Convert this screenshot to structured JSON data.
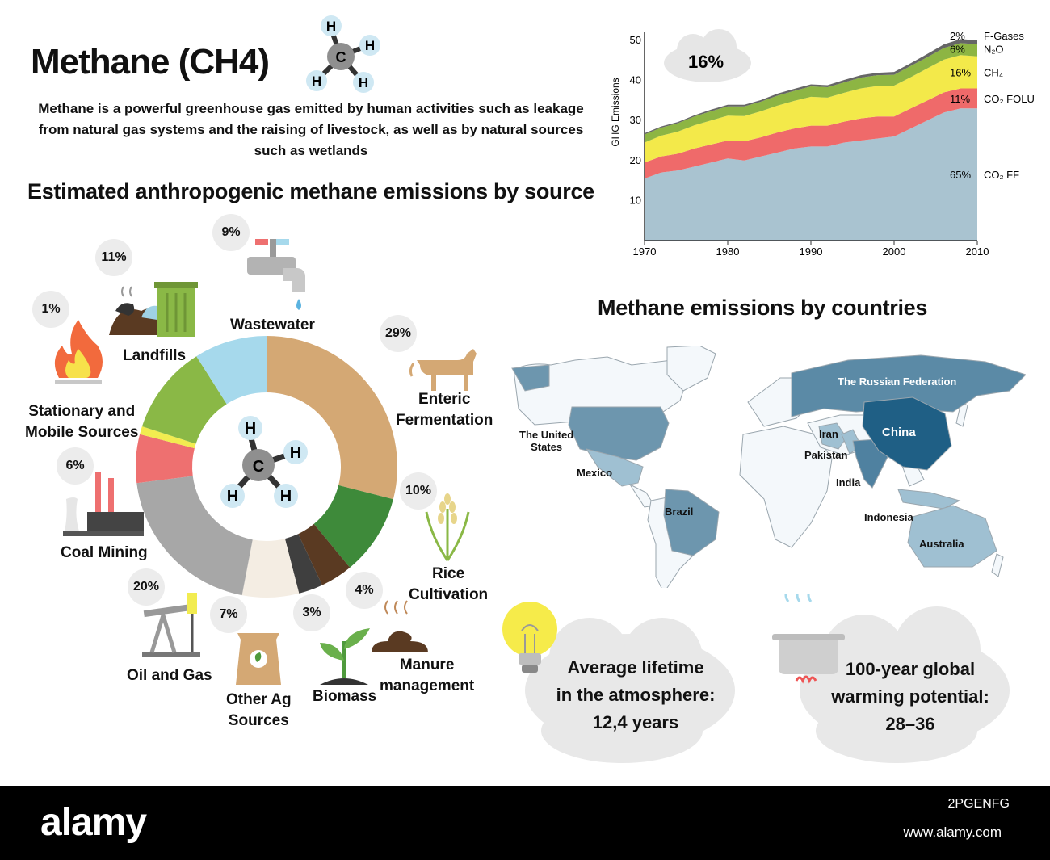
{
  "header": {
    "title": "Methane (CH4)",
    "intro": "Methane is a powerful greenhouse gas emitted by human activities such as leakage from natural gas systems and the raising of livestock, as well as by natural sources such as wetlands"
  },
  "donut_section": {
    "title": "Estimated anthropogenic methane emissions by source"
  },
  "molecule": {
    "center": "C",
    "atom": "H"
  },
  "chart_data": [
    {
      "type": "pie",
      "title": "Estimated anthropogenic methane emissions by source",
      "categories": [
        "Enteric Fermentation",
        "Rice Cultivation",
        "Manure management",
        "Biomass",
        "Other Ag Sources",
        "Oil and Gas",
        "Coal Mining",
        "Stationary and Mobile Sources",
        "Landfills",
        "Wastewater"
      ],
      "values": [
        29,
        10,
        4,
        3,
        7,
        20,
        6,
        1,
        11,
        9
      ],
      "labels": [
        "29%",
        "10%",
        "4%",
        "3%",
        "7%",
        "20%",
        "6%",
        "1%",
        "11%",
        "9%"
      ],
      "colors": [
        "#d4a874",
        "#3e8a3a",
        "#5a3a22",
        "#3f3f3f",
        "#f4ede3",
        "#a7a7a7",
        "#ee7070",
        "#f2ec50",
        "#8ab846",
        "#a6d9ec"
      ]
    },
    {
      "type": "area",
      "ylabel": "GHG Emissions",
      "x": [
        1970,
        1972,
        1974,
        1976,
        1978,
        1980,
        1982,
        1984,
        1986,
        1988,
        1990,
        1992,
        1994,
        1996,
        1998,
        2000,
        2002,
        2004,
        2006,
        2008,
        2010
      ],
      "xticks": [
        "1970",
        "1980",
        "1990",
        "2000",
        "2010"
      ],
      "yticks": [
        "10",
        "20",
        "30",
        "40",
        "50"
      ],
      "ylim": [
        0,
        52
      ],
      "series": [
        {
          "name": "CO₂ FF",
          "share": "65%",
          "color": "#a9c3d0",
          "values": [
            15.5,
            17,
            17.5,
            18.5,
            19.5,
            20.5,
            20,
            21,
            22,
            23,
            23.5,
            23.5,
            24.5,
            25,
            25.5,
            26,
            28,
            30,
            32,
            33,
            33
          ]
        },
        {
          "name": "CO₂ FOLU",
          "share": "11%",
          "color": "#ef6a6a",
          "values": [
            4,
            4,
            4.2,
            4.5,
            4.5,
            4.5,
            4.8,
            4.8,
            5,
            5,
            5.2,
            5.2,
            5.2,
            5.5,
            5.5,
            5,
            5,
            5,
            5,
            5,
            5
          ]
        },
        {
          "name": "CH₄",
          "share": "16%",
          "color": "#f3e94a",
          "values": [
            5,
            5.2,
            5.5,
            5.8,
            6,
            6.2,
            6.3,
            6.5,
            6.7,
            6.9,
            7.2,
            7,
            7.2,
            7.5,
            7.6,
            7.7,
            7.8,
            8,
            8.2,
            8.3,
            8
          ]
        },
        {
          "name": "N₂O",
          "share": "6%",
          "color": "#8db543",
          "values": [
            2,
            2,
            2.1,
            2.2,
            2.3,
            2.3,
            2.4,
            2.4,
            2.5,
            2.5,
            2.6,
            2.6,
            2.6,
            2.7,
            2.7,
            2.7,
            2.8,
            2.8,
            2.9,
            3,
            3
          ]
        },
        {
          "name": "F-Gases",
          "share": "2%",
          "color": "#666666",
          "values": [
            0.3,
            0.3,
            0.3,
            0.3,
            0.4,
            0.4,
            0.4,
            0.4,
            0.5,
            0.5,
            0.5,
            0.5,
            0.6,
            0.6,
            0.6,
            0.7,
            0.7,
            0.8,
            0.9,
            1,
            1
          ]
        }
      ],
      "annotation": "16%"
    }
  ],
  "labels": {
    "enteric": [
      "Enteric",
      "Fermentation"
    ],
    "rice": [
      "Rice",
      "Cultivation"
    ],
    "manure": [
      "Manure",
      "management"
    ],
    "biomass": "Biomass",
    "other_ag": [
      "Other Ag",
      "Sources"
    ],
    "oil_gas": "Oil and Gas",
    "coal": "Coal Mining",
    "stationary": [
      "Stationary and",
      "Mobile Sources"
    ],
    "landfills": "Landfills",
    "wastewater": "Wastewater"
  },
  "map_section": {
    "title": "Methane emissions by countries",
    "countries": {
      "russia": "The Russian Federation",
      "usa": [
        "The United",
        "States"
      ],
      "mexico": "Mexico",
      "brazil": "Brazil",
      "iran": "Iran",
      "pakistan": "Pakistan",
      "india": "India",
      "china": "China",
      "indonesia": "Indonesia",
      "australia": "Australia"
    }
  },
  "facts": {
    "lifetime": [
      "Average lifetime",
      "in the atmosphere:",
      "12,4 years"
    ],
    "gwp": [
      "100-year global",
      "warming potential:",
      "28–36"
    ]
  },
  "footer": {
    "brand": "alamy",
    "code": "2PGENFG",
    "url": "www.alamy.com"
  }
}
